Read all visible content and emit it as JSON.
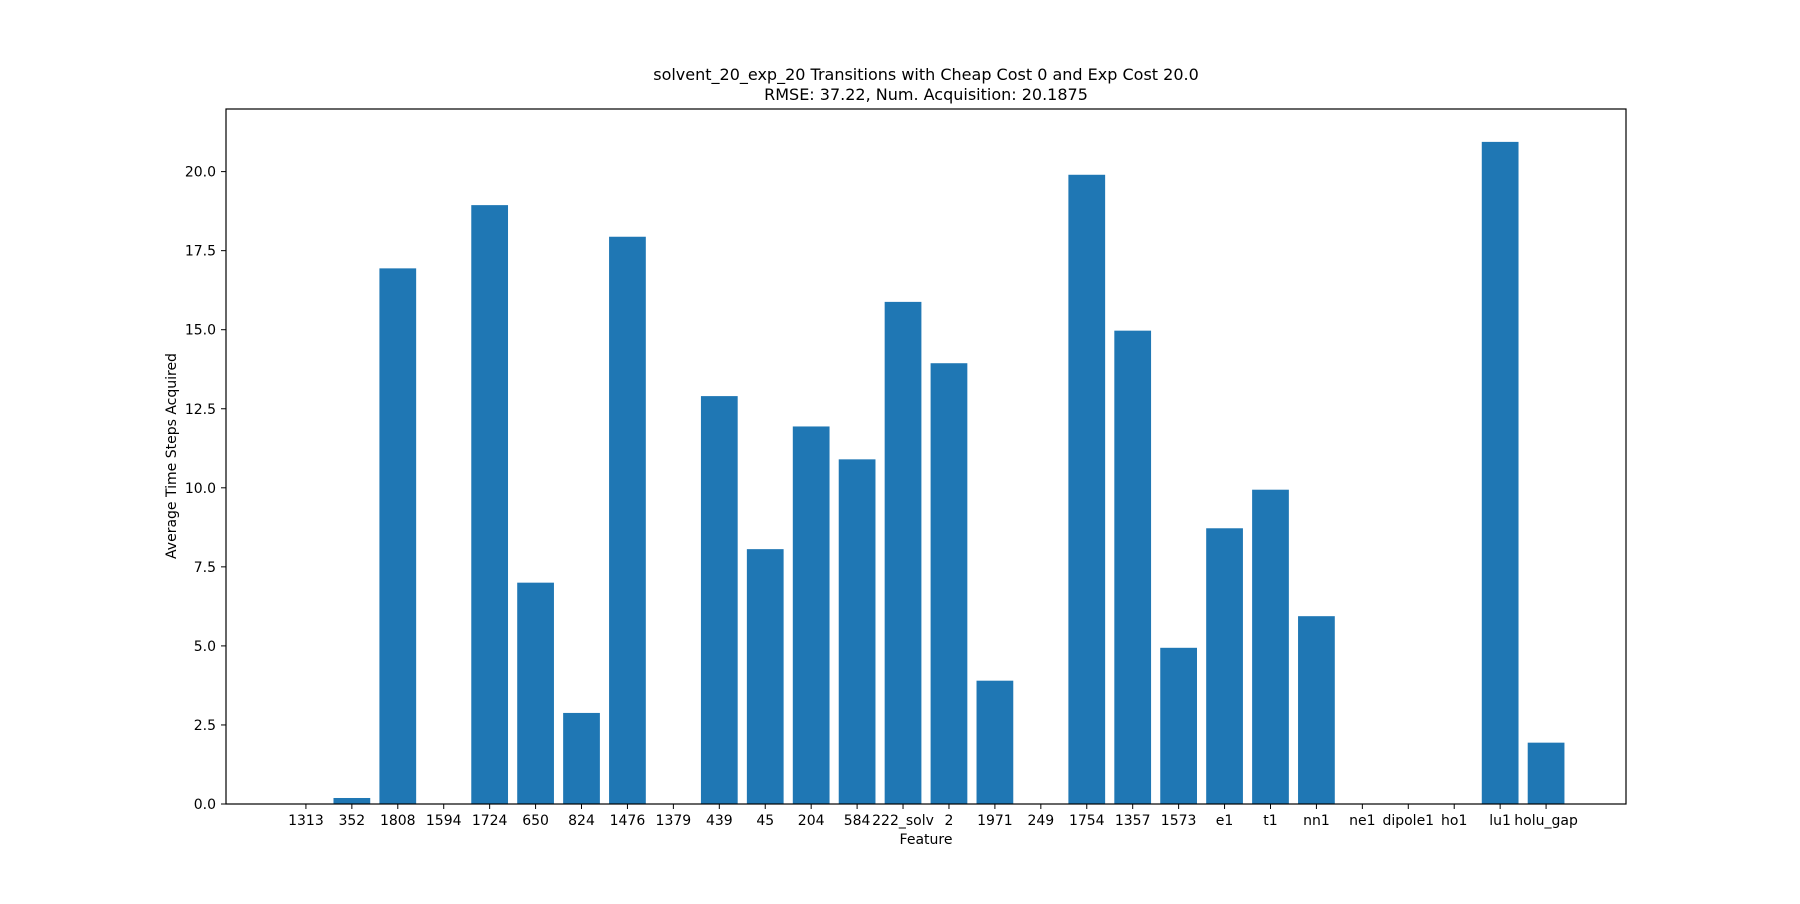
{
  "chart_data": {
    "type": "bar",
    "title": "solvent_20_exp_20 Transitions with Cheap Cost 0 and Exp Cost 20.0",
    "subtitle": "RMSE: 37.22, Num. Acquisition: 20.1875",
    "xlabel": "Feature",
    "ylabel": "Average Time Steps Acquired",
    "ylim": [
      0,
      21.98
    ],
    "yticks": [
      0.0,
      2.5,
      5.0,
      7.5,
      10.0,
      12.5,
      15.0,
      17.5,
      20.0
    ],
    "ytick_labels": [
      "0.0",
      "2.5",
      "5.0",
      "7.5",
      "10.0",
      "12.5",
      "15.0",
      "17.5",
      "20.0"
    ],
    "grid": false,
    "bar_color": "#1f77b4",
    "categories": [
      "1313",
      "352",
      "1808",
      "1594",
      "1724",
      "650",
      "824",
      "1476",
      "1379",
      "439",
      "45",
      "204",
      "584",
      "222_solv",
      "2",
      "1971",
      "249",
      "1754",
      "1357",
      "1573",
      "e1",
      "t1",
      "nn1",
      "ne1",
      "dipole1",
      "ho1",
      "lu1",
      "holu_gap"
    ],
    "values": [
      0,
      0.19,
      16.94,
      0,
      18.94,
      7.0,
      2.88,
      17.94,
      0,
      12.9,
      8.06,
      11.94,
      10.9,
      15.88,
      13.94,
      3.9,
      0,
      19.9,
      14.97,
      4.94,
      8.72,
      9.94,
      5.94,
      0,
      0,
      0,
      20.94,
      1.94
    ]
  }
}
